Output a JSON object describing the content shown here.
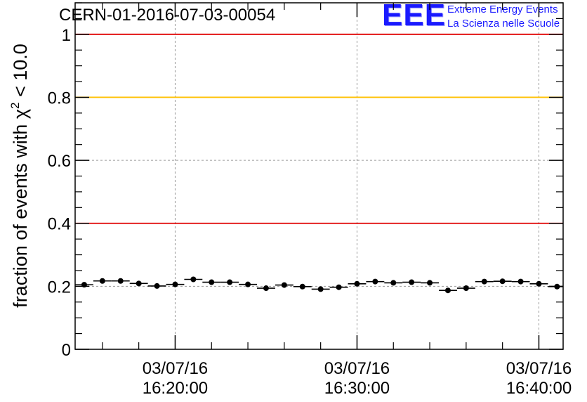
{
  "title": "CERN-01-2016-07-03-00054",
  "logo": {
    "mark": "EEE",
    "line1": "Extreme Energy Events",
    "line2": "La Scienza nelle Scuole",
    "color": "#1a1aff"
  },
  "chart_data": {
    "type": "scatter",
    "title": "CERN-01-2016-07-03-00054",
    "ylabel": {
      "prefix": "fraction of events with ",
      "base": "χ",
      "exponent": "2",
      "suffix": " < 10.0"
    },
    "xlabel": "",
    "ylim": [
      0,
      1.1
    ],
    "xlim": [
      "16:14:30",
      "16:41:20"
    ],
    "grid": true,
    "x_ticks": [
      {
        "time": "16:20:00",
        "date": "03/07/16",
        "label": "16:20:00"
      },
      {
        "time": "16:30:00",
        "date": "03/07/16",
        "label": "16:30:00"
      },
      {
        "time": "16:40:00",
        "date": "03/07/16",
        "label": "16:40:00"
      }
    ],
    "y_ticks": [
      {
        "value": 0,
        "label": "0"
      },
      {
        "value": 0.2,
        "label": "0.2"
      },
      {
        "value": 0.4,
        "label": "0.4"
      },
      {
        "value": 0.6,
        "label": "0.6"
      },
      {
        "value": 0.8,
        "label": "0.8"
      },
      {
        "value": 1,
        "label": "1"
      }
    ],
    "reference_lines": [
      {
        "value": 1.0,
        "color": "#e00000"
      },
      {
        "value": 0.8,
        "color": "#ffc000"
      },
      {
        "value": 0.4,
        "color": "#e00000"
      }
    ],
    "bin_width_s": 60,
    "series": [
      {
        "marker_color": "#000000",
        "points": [
          {
            "x": "16:15:00",
            "y": 0.205
          },
          {
            "x": "16:16:00",
            "y": 0.217
          },
          {
            "x": "16:17:00",
            "y": 0.217
          },
          {
            "x": "16:18:00",
            "y": 0.209
          },
          {
            "x": "16:19:00",
            "y": 0.201
          },
          {
            "x": "16:20:00",
            "y": 0.206
          },
          {
            "x": "16:21:00",
            "y": 0.222
          },
          {
            "x": "16:22:00",
            "y": 0.213
          },
          {
            "x": "16:23:00",
            "y": 0.213
          },
          {
            "x": "16:24:00",
            "y": 0.206
          },
          {
            "x": "16:25:00",
            "y": 0.194
          },
          {
            "x": "16:26:00",
            "y": 0.204
          },
          {
            "x": "16:27:00",
            "y": 0.199
          },
          {
            "x": "16:28:00",
            "y": 0.191
          },
          {
            "x": "16:29:00",
            "y": 0.197
          },
          {
            "x": "16:30:00",
            "y": 0.208
          },
          {
            "x": "16:31:00",
            "y": 0.215
          },
          {
            "x": "16:32:00",
            "y": 0.211
          },
          {
            "x": "16:33:00",
            "y": 0.213
          },
          {
            "x": "16:34:00",
            "y": 0.211
          },
          {
            "x": "16:35:00",
            "y": 0.187
          },
          {
            "x": "16:36:00",
            "y": 0.194
          },
          {
            "x": "16:37:00",
            "y": 0.215
          },
          {
            "x": "16:38:00",
            "y": 0.216
          },
          {
            "x": "16:39:00",
            "y": 0.215
          },
          {
            "x": "16:40:00",
            "y": 0.208
          },
          {
            "x": "16:41:00",
            "y": 0.199
          }
        ]
      }
    ]
  }
}
